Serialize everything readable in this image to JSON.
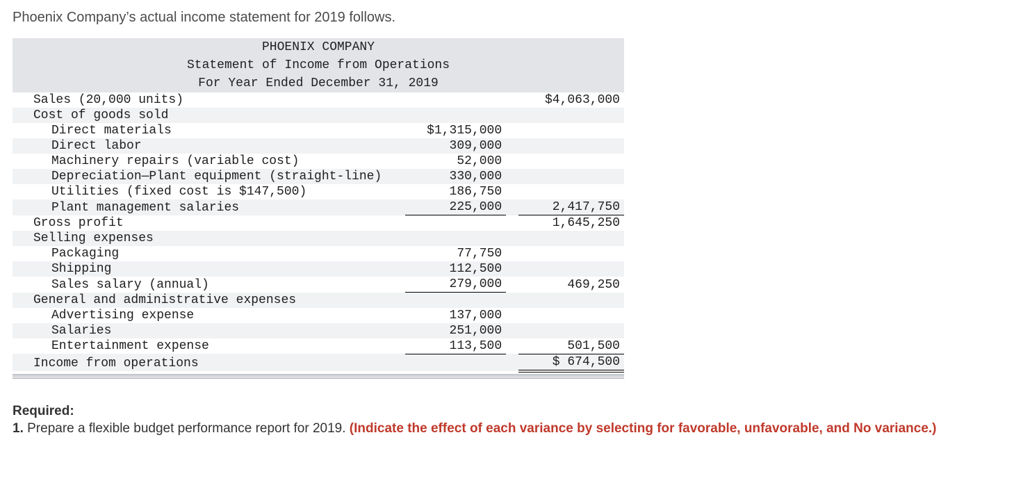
{
  "intro": "Phoenix Company’s actual income statement for 2019 follows.",
  "header": {
    "company": "PHOENIX COMPANY",
    "title": "Statement of Income from Operations",
    "period": "For Year Ended December 31, 2019"
  },
  "rows": {
    "sales": {
      "label": "Sales (20,000 units)",
      "colB": "$4,063,000"
    },
    "cogs": {
      "label": "Cost of goods sold"
    },
    "dm": {
      "label": "Direct materials",
      "colA": "$1,315,000"
    },
    "dl": {
      "label": "Direct labor",
      "colA": "309,000"
    },
    "repairs": {
      "label": "Machinery repairs (variable cost)",
      "colA": "52,000"
    },
    "depr": {
      "label": "Depreciation—Plant equipment (straight-line)",
      "colA": "330,000"
    },
    "util": {
      "label": "Utilities (fixed cost is $147,500)",
      "colA": "186,750"
    },
    "pms": {
      "label": "Plant management salaries",
      "colA": "225,000",
      "colB": "2,417,750"
    },
    "gp": {
      "label": "Gross profit",
      "colB": "1,645,250"
    },
    "sellhdr": {
      "label": "Selling expenses"
    },
    "pack": {
      "label": "Packaging",
      "colA": "77,750"
    },
    "ship": {
      "label": "Shipping",
      "colA": "112,500"
    },
    "ssalary": {
      "label": "Sales salary (annual)",
      "colA": "279,000",
      "colB": "469,250"
    },
    "gahdr": {
      "label": "General and administrative expenses"
    },
    "adv": {
      "label": "Advertising expense",
      "colA": "137,000"
    },
    "sal": {
      "label": "Salaries",
      "colA": "251,000"
    },
    "ent": {
      "label": "Entertainment expense",
      "colA": "113,500",
      "colB": "501,500"
    },
    "income": {
      "label": "Income from operations",
      "colB": "$  674,500"
    }
  },
  "required": {
    "heading": "Required:",
    "q_prefix": "1. ",
    "q_text": "Prepare a flexible budget performance report for 2019. ",
    "instr": "(Indicate the effect of each variance by selecting  for favorable, unfavorable, and No variance.)"
  }
}
